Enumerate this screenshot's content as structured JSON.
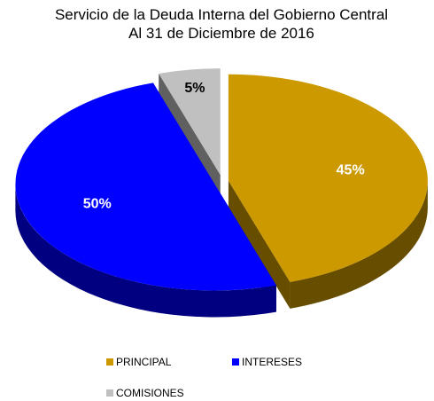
{
  "chart_data": {
    "type": "pie3d",
    "title": "Servicio de la Deuda Interna del Gobierno Central",
    "subtitle": "Al 31 de Diciembre de 2016",
    "categories": [
      "PRINCIPAL",
      "INTERESES",
      "COMISIONES"
    ],
    "values": [
      45,
      50,
      5
    ],
    "value_labels": [
      "45%",
      "50%",
      "5%"
    ],
    "colors": [
      "#CC9900",
      "#0000FF",
      "#C0C0C0"
    ]
  }
}
